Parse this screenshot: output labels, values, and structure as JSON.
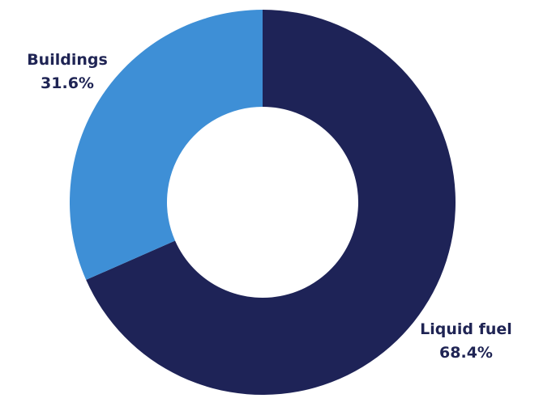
{
  "chart_data": {
    "type": "pie",
    "donut": true,
    "title": "",
    "slices": [
      {
        "label": "Liquid fuel",
        "value": 68.4,
        "value_label": "68.4%",
        "color": "#1e2357"
      },
      {
        "label": "Buildings",
        "value": 31.6,
        "value_label": "31.6%",
        "color": "#3e8fd6"
      }
    ],
    "legend": "none"
  }
}
